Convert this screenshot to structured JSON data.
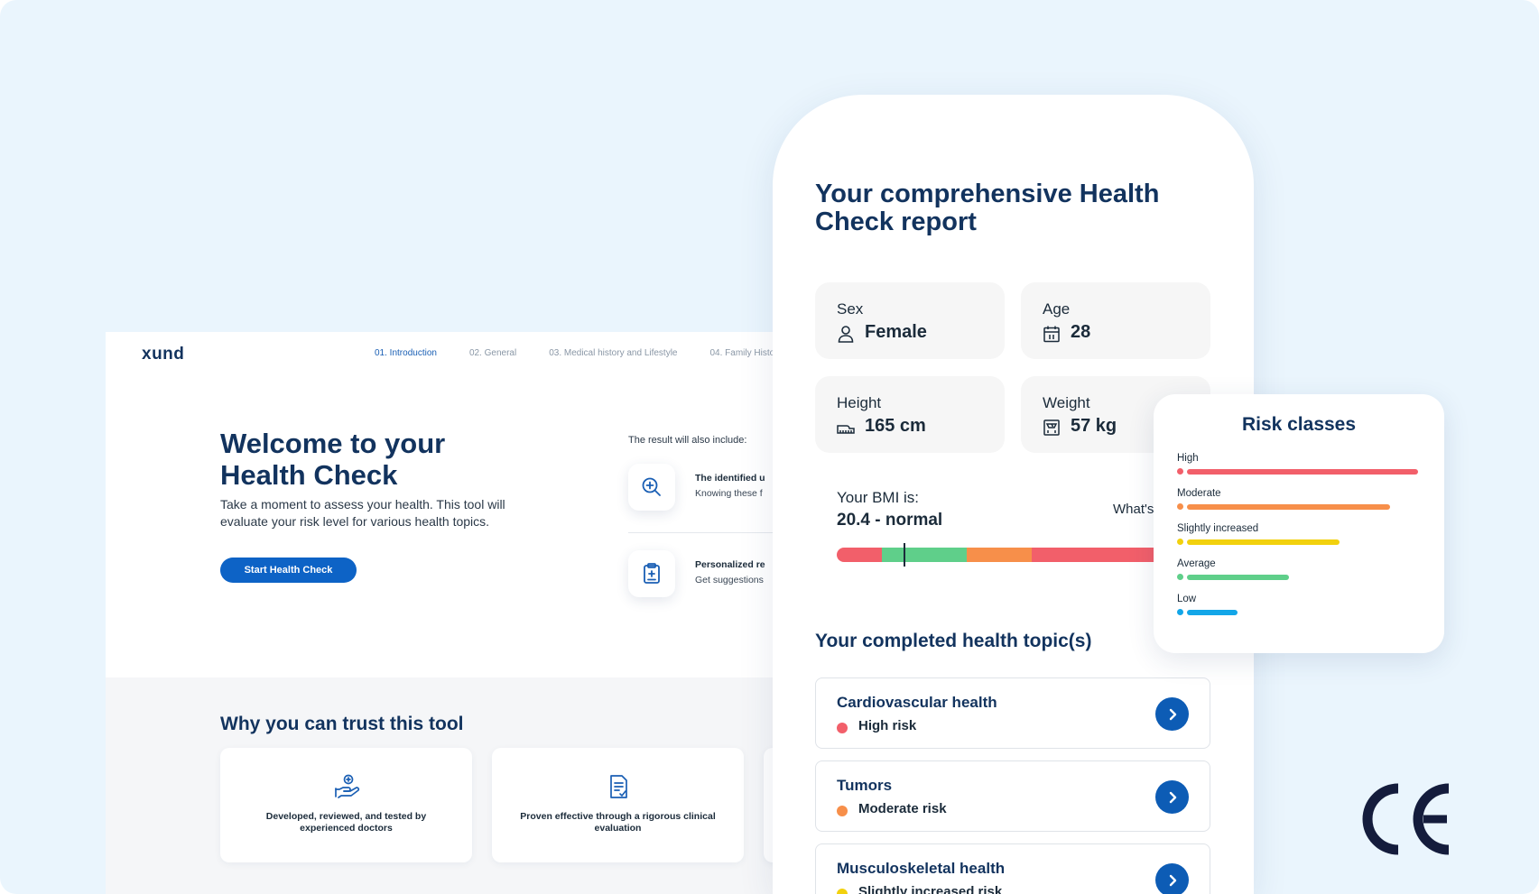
{
  "colors": {
    "background": "#eaf5fd",
    "brand_navy": "#12335e",
    "primary_blue": "#0d63c6",
    "risk_high": "#f25f6a",
    "risk_moderate": "#f78f4a",
    "risk_slight": "#f2d10e",
    "risk_average": "#5fcf8a",
    "risk_low": "#13a6e8"
  },
  "web": {
    "logo": "xund",
    "steps": [
      "01. Introduction",
      "02. General",
      "03. Medical history and Lifestyle",
      "04. Family Histo"
    ],
    "active_step": 0,
    "hero_title": "Welcome to your Health Check",
    "hero_desc": "Take a moment to assess your health. This tool will evaluate your risk level for various health topics.",
    "start_button": "Start Health Check",
    "includes_label": "The result will also include:",
    "includes": [
      {
        "icon": "magnifier-plus-icon",
        "title": "The identified u",
        "sub": "Knowing these f"
      },
      {
        "icon": "clipboard-plus-icon",
        "title": "Personalized re",
        "sub": "Get suggestions"
      }
    ],
    "trust_title": "Why you can trust this tool",
    "trust_cards": [
      {
        "icon": "hand-heart-icon",
        "text": "Developed, reviewed, and tested by experienced doctors"
      },
      {
        "icon": "document-check-icon",
        "text": "Proven effective through a rigorous clinical evaluation"
      }
    ]
  },
  "report": {
    "title": "Your comprehensive Health Check report",
    "stats": [
      {
        "label": "Sex",
        "value": "Female",
        "icon": "person-icon"
      },
      {
        "label": "Age",
        "value": "28",
        "icon": "calendar-icon"
      },
      {
        "label": "Height",
        "value": "165 cm",
        "icon": "ruler-icon"
      },
      {
        "label": "Weight",
        "value": "57 kg",
        "icon": "scale-icon"
      }
    ],
    "bmi_label": "Your BMI is:",
    "bmi_value": "20.4 - normal",
    "bmi_whats": "What's",
    "bmi_marker_fraction": 0.205,
    "bmi_segments": [
      {
        "color": "#f25f6a",
        "fraction": 0.14
      },
      {
        "color": "#5fcf8a",
        "fraction": 0.26
      },
      {
        "color": "#f78f4a",
        "fraction": 0.2
      },
      {
        "color": "#f25f6a",
        "fraction": 0.4
      }
    ],
    "topics_title": "Your completed health topic(s)",
    "topics": [
      {
        "name": "Cardiovascular health",
        "risk": "High risk",
        "color": "#f25f6a"
      },
      {
        "name": "Tumors",
        "risk": "Moderate risk",
        "color": "#f78f4a"
      },
      {
        "name": "Musculoskeletal health",
        "risk": "Slightly increased risk",
        "color": "#f2d10e"
      }
    ]
  },
  "risk_classes": {
    "title": "Risk classes",
    "items": [
      {
        "label": "High",
        "color": "#f25f6a",
        "fraction": 1.0
      },
      {
        "label": "Moderate",
        "color": "#f78f4a",
        "fraction": 0.88
      },
      {
        "label": "Slightly increased",
        "color": "#f2d10e",
        "fraction": 0.66
      },
      {
        "label": "Average",
        "color": "#5fcf8a",
        "fraction": 0.44
      },
      {
        "label": "Low",
        "color": "#13a6e8",
        "fraction": 0.22
      }
    ]
  },
  "badge": {
    "icon": "ce-mark-icon"
  }
}
